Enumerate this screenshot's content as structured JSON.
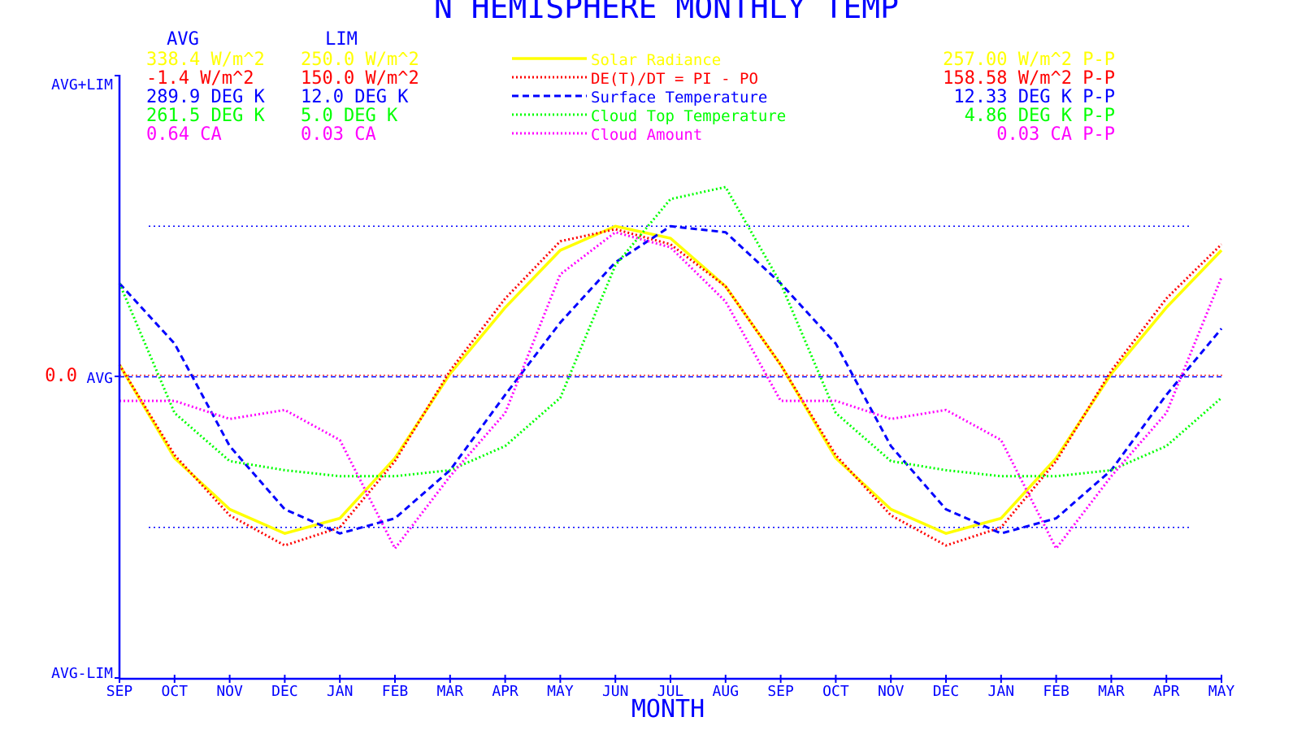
{
  "colors": {
    "blue": "#0000ff",
    "yellow": "#ffff00",
    "red": "#ff0000",
    "green": "#00ff00",
    "magenta": "#ff00ff",
    "background": "#ffffff"
  },
  "chart_data": {
    "type": "line",
    "title": "N HEMISPHERE MONTHLY TEMP",
    "xlabel": "MONTH",
    "x": [
      "SEP",
      "OCT",
      "NOV",
      "DEC",
      "JAN",
      "FEB",
      "MAR",
      "APR",
      "MAY",
      "JUN",
      "JUL",
      "AUG",
      "SEP",
      "OCT",
      "NOV",
      "DEC",
      "JAN",
      "FEB",
      "MAR",
      "APR",
      "MAY"
    ],
    "y_axis_labels": {
      "top": "AVG+LIM",
      "middle": "AVG",
      "bottom": "AVG-LIM",
      "zero": "0.0"
    },
    "ylim": [
      -1,
      1
    ],
    "y_units": "deviation from AVG as fraction of LIM",
    "reference_lines": [
      0.5,
      -0.5
    ],
    "stats_headers": {
      "avg": "AVG",
      "lim": "LIM"
    },
    "series": [
      {
        "name": "Solar Radiance",
        "color": "#ffff00",
        "style": "solid",
        "avg_text": "338.4 W/m^2",
        "lim_text": "250.0 W/m^2",
        "pp_text": "257.00 W/m^2 P-P",
        "values": [
          0.04,
          -0.27,
          -0.44,
          -0.52,
          -0.47,
          -0.27,
          0.01,
          0.23,
          0.42,
          0.5,
          0.46,
          0.3,
          0.04,
          -0.27,
          -0.44,
          -0.52,
          -0.47,
          -0.27,
          0.01,
          0.23,
          0.42
        ]
      },
      {
        "name": "DE(T)/DT = PI - PO",
        "color": "#ff0000",
        "style": "dotted",
        "avg_text": "-1.4 W/m^2",
        "lim_text": "150.0 W/m^2",
        "pp_text": "158.58 W/m^2 P-P",
        "values": [
          0.04,
          -0.26,
          -0.46,
          -0.56,
          -0.5,
          -0.28,
          0.02,
          0.26,
          0.45,
          0.49,
          0.44,
          0.3,
          0.04,
          -0.26,
          -0.46,
          -0.56,
          -0.5,
          -0.28,
          0.02,
          0.26,
          0.44
        ]
      },
      {
        "name": "Surface Temperature",
        "color": "#0000ff",
        "style": "dashed",
        "avg_text": "289.9 DEG K",
        "lim_text": "12.0 DEG K",
        "pp_text": "12.33 DEG K P-P",
        "values": [
          0.31,
          0.11,
          -0.23,
          -0.44,
          -0.52,
          -0.47,
          -0.31,
          -0.06,
          0.18,
          0.38,
          0.5,
          0.48,
          0.31,
          0.11,
          -0.23,
          -0.44,
          -0.52,
          -0.47,
          -0.31,
          -0.06,
          0.16
        ]
      },
      {
        "name": "Cloud Top Temperature",
        "color": "#00ff00",
        "style": "dotted",
        "avg_text": "261.5 DEG K",
        "lim_text": "5.0 DEG K",
        "pp_text": "4.86 DEG K P-P",
        "values": [
          0.31,
          -0.12,
          -0.28,
          -0.31,
          -0.33,
          -0.33,
          -0.31,
          -0.23,
          -0.07,
          0.37,
          0.59,
          0.63,
          0.31,
          -0.12,
          -0.28,
          -0.31,
          -0.33,
          -0.33,
          -0.31,
          -0.23,
          -0.07
        ]
      },
      {
        "name": "Cloud Amount",
        "color": "#ff00ff",
        "style": "dotted",
        "avg_text": "0.64 CA",
        "lim_text": "0.03 CA",
        "pp_text": "0.03 CA P-P",
        "values": [
          -0.08,
          -0.08,
          -0.14,
          -0.11,
          -0.21,
          -0.57,
          -0.33,
          -0.12,
          0.34,
          0.48,
          0.43,
          0.25,
          -0.08,
          -0.08,
          -0.14,
          -0.11,
          -0.21,
          -0.57,
          -0.33,
          -0.12,
          0.33
        ]
      }
    ]
  }
}
